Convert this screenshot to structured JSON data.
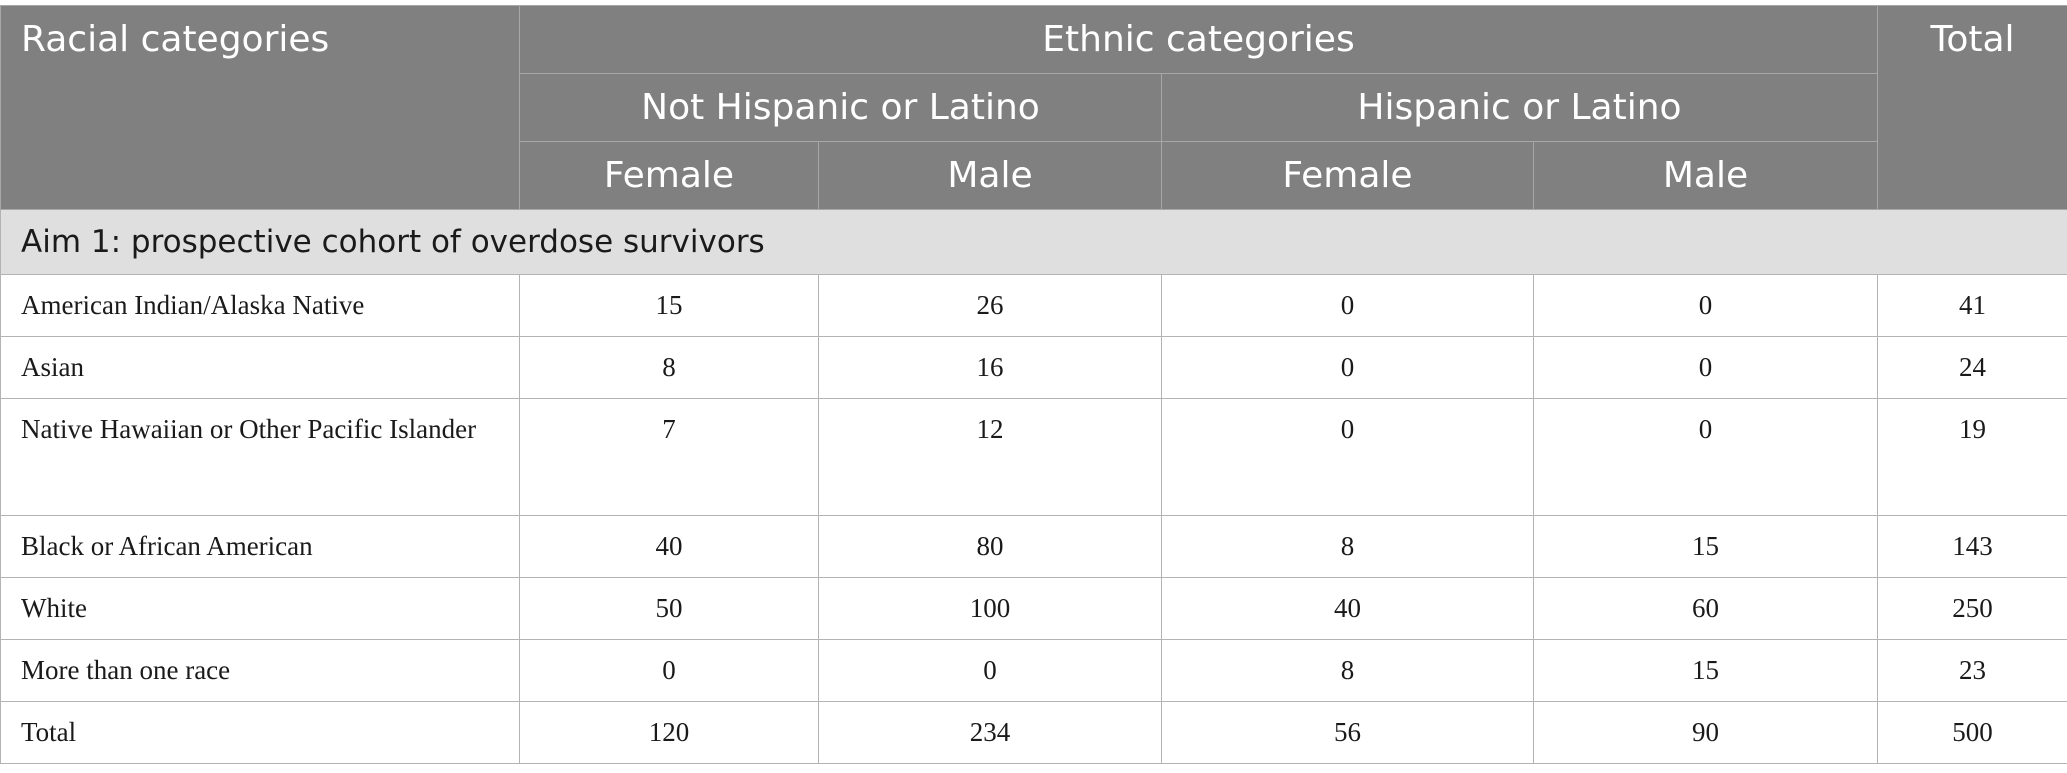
{
  "header": {
    "racial_label": "Racial categories",
    "ethnic_label": "Ethnic categories",
    "total_label": "Total",
    "groups": [
      "Not Hispanic or Latino",
      "Hispanic or Latino"
    ],
    "subcols": [
      "Female",
      "Male",
      "Female",
      "Male"
    ]
  },
  "section": {
    "title": "Aim 1: prospective cohort of overdose survivors"
  },
  "rows": [
    {
      "label": "American Indian/Alaska Native",
      "values": [
        "15",
        "26",
        "0",
        "0",
        "41"
      ]
    },
    {
      "label": "Asian",
      "values": [
        "8",
        "16",
        "0",
        "0",
        "24"
      ]
    },
    {
      "label": "Native Hawaiian or Other Pacific Islander",
      "values": [
        "7",
        "12",
        "0",
        "0",
        "19"
      ]
    },
    {
      "label": "Black or African American",
      "values": [
        "40",
        "80",
        "8",
        "15",
        "143"
      ]
    },
    {
      "label": "White",
      "values": [
        "50",
        "100",
        "40",
        "60",
        "250"
      ]
    },
    {
      "label": "More than one race",
      "values": [
        "0",
        "0",
        "8",
        "15",
        "23"
      ]
    },
    {
      "label": "Total",
      "values": [
        "120",
        "234",
        "56",
        "90",
        "500"
      ]
    }
  ]
}
